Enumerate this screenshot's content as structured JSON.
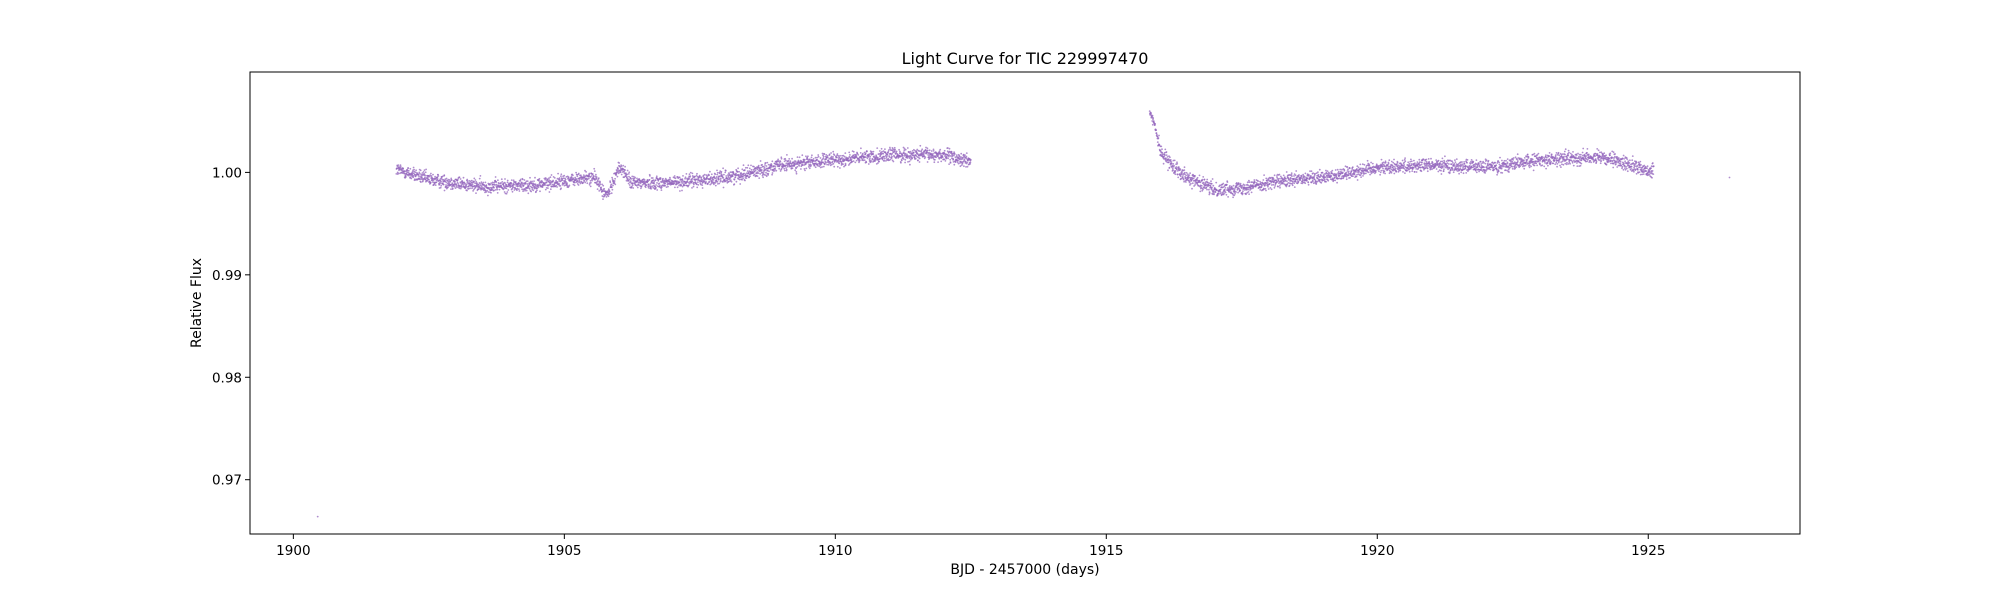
{
  "chart_data": {
    "type": "scatter",
    "title": "Light Curve for TIC 229997470",
    "xlabel": "BJD - 2457000 (days)",
    "ylabel": "Relative Flux",
    "xlim": [
      1899.2,
      1927.8
    ],
    "ylim": [
      0.9647,
      1.0098
    ],
    "xticks": [
      1900,
      1905,
      1910,
      1915,
      1920,
      1925
    ],
    "yticks": [
      0.97,
      0.98,
      0.99,
      1.0
    ],
    "xtick_labels": [
      "1900",
      "1905",
      "1910",
      "1915",
      "1920",
      "1925"
    ],
    "ytick_labels": [
      "0.97",
      "0.98",
      "0.99",
      "1.00"
    ],
    "grid": false,
    "legend": "none",
    "point_color": "#9467bd",
    "series": [
      {
        "segments": [
          {
            "x_start": 1901.9,
            "x_end": 1912.5,
            "trend": [
              [
                1901.9,
                1.0003
              ],
              [
                1902.5,
                0.9993
              ],
              [
                1903.5,
                0.9986
              ],
              [
                1904.5,
                0.9988
              ],
              [
                1905.5,
                0.9995
              ],
              [
                1906.0,
                0.999
              ],
              [
                1907.0,
                0.999
              ],
              [
                1908.0,
                0.9995
              ],
              [
                1909.0,
                1.0007
              ],
              [
                1910.0,
                1.0012
              ],
              [
                1911.0,
                1.0017
              ],
              [
                1912.0,
                1.0017
              ],
              [
                1912.5,
                1.001
              ]
            ],
            "scatter": 0.0006
          },
          {
            "x_start": 1915.8,
            "x_end": 1925.1,
            "trend": [
              [
                1915.8,
                1.006
              ],
              [
                1915.9,
                1.0045
              ],
              [
                1916.0,
                1.002
              ],
              [
                1916.2,
                1.0008
              ],
              [
                1916.5,
                0.9995
              ],
              [
                1917.0,
                0.9983
              ],
              [
                1917.5,
                0.9985
              ],
              [
                1918.0,
                0.999
              ],
              [
                1919.0,
                0.9995
              ],
              [
                1920.0,
                1.0005
              ],
              [
                1921.0,
                1.0007
              ],
              [
                1922.0,
                1.0005
              ],
              [
                1923.0,
                1.0012
              ],
              [
                1924.0,
                1.0015
              ],
              [
                1924.5,
                1.001
              ],
              [
                1925.1,
                1.0
              ]
            ],
            "scatter": 0.0006
          }
        ],
        "features": [
          {
            "type": "wiggle",
            "x": 1905.9,
            "width": 0.35,
            "amplitude": 0.0018
          }
        ],
        "outliers": [
          [
            1900.45,
            0.9664
          ],
          [
            1926.5,
            0.9995
          ]
        ]
      }
    ]
  }
}
